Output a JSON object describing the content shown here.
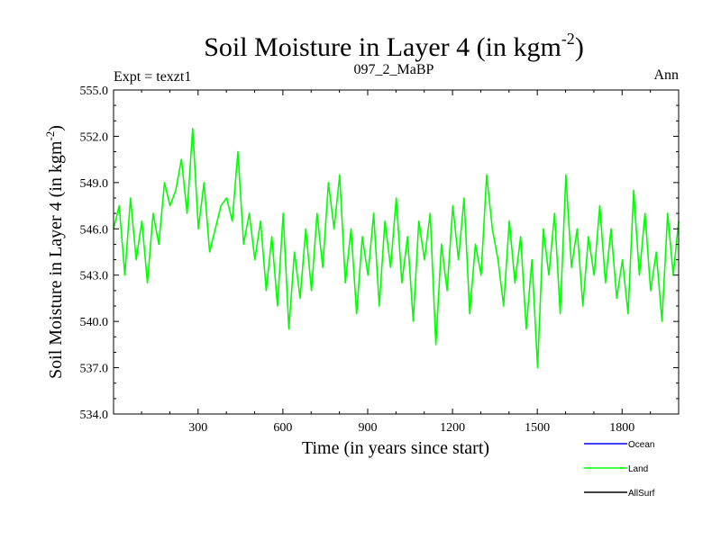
{
  "chart_data": {
    "type": "line",
    "title": "Soil Moisture in Layer 4 (in kgm",
    "title_sup": "-2",
    "title_end": ")",
    "left_label": "Expt = texzt1",
    "center_label": "097_2_MaBP",
    "right_label": "Ann",
    "xlabel": "Time (in years since start)",
    "ylabel": "Soil Moisture in Layer 4 (in kgm",
    "ylabel_sup": "-2",
    "ylabel_end": ")",
    "xlim": [
      1,
      2000
    ],
    "ylim": [
      534,
      555
    ],
    "x_ticks": [
      300,
      600,
      900,
      1200,
      1500,
      1800
    ],
    "x_tick_labels": [
      "300",
      "600",
      "900",
      "1200",
      "1500",
      "1800"
    ],
    "y_ticks": [
      534,
      537,
      540,
      543,
      546,
      549,
      552,
      555
    ],
    "y_tick_labels": [
      "534.0",
      "537.0",
      "540.0",
      "543.0",
      "546.0",
      "549.0",
      "552.0",
      "555.0"
    ],
    "series": [
      {
        "name": "Land",
        "color": "#00ff00",
        "x_start": 1,
        "x_step": 20,
        "values": [
          546.0,
          547.5,
          543.0,
          548.0,
          544.0,
          546.5,
          542.5,
          547.0,
          545.0,
          549.0,
          547.5,
          548.5,
          550.5,
          547.0,
          552.5,
          546.0,
          549.0,
          544.5,
          546.0,
          547.5,
          548.0,
          546.5,
          551.0,
          545.0,
          547.0,
          544.0,
          546.5,
          542.0,
          545.5,
          541.0,
          547.0,
          539.5,
          544.5,
          541.5,
          546.0,
          542.0,
          547.0,
          543.5,
          549.0,
          546.0,
          549.5,
          542.5,
          546.0,
          540.5,
          545.5,
          543.0,
          547.0,
          541.0,
          546.5,
          543.5,
          548.0,
          542.5,
          545.5,
          540.0,
          546.5,
          544.0,
          547.0,
          538.5,
          545.0,
          542.0,
          547.5,
          544.0,
          548.0,
          540.5,
          545.0,
          543.0,
          549.5,
          546.0,
          544.0,
          541.0,
          546.5,
          542.5,
          545.5,
          539.5,
          544.0,
          537.0,
          546.0,
          543.0,
          547.0,
          540.5,
          549.5,
          543.5,
          546.0,
          541.0,
          545.5,
          543.0,
          547.5,
          542.5,
          546.0,
          541.5,
          544.0,
          540.5,
          548.5,
          543.0,
          547.0,
          542.0,
          544.5,
          540.0,
          547.0,
          543.0,
          546.5
        ]
      },
      {
        "name": "Ocean",
        "color": "#0000ff",
        "values": []
      },
      {
        "name": "AllSurf",
        "color": "#000000",
        "values": []
      }
    ],
    "legend_position": "bottom-right"
  }
}
